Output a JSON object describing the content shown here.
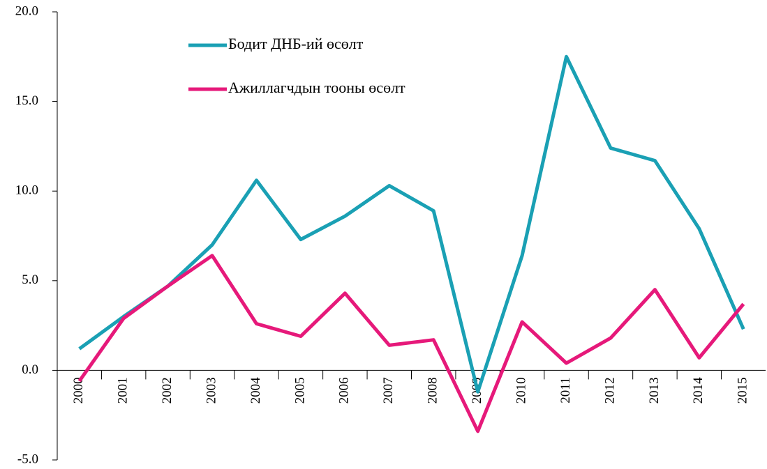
{
  "chart_data": {
    "type": "line",
    "categories": [
      "2000",
      "2001",
      "2002",
      "2003",
      "2004",
      "2005",
      "2006",
      "2007",
      "2008",
      "2009",
      "2010",
      "2011",
      "2012",
      "2013",
      "2014",
      "2015"
    ],
    "series": [
      {
        "name": "Бодит ДНБ-ий өсөлт",
        "color": "#1aa0b4",
        "values": [
          1.2,
          3.0,
          4.7,
          7.0,
          10.6,
          7.3,
          8.6,
          10.3,
          8.9,
          -1.2,
          6.4,
          17.5,
          12.4,
          11.7,
          7.9,
          2.3
        ]
      },
      {
        "name": "Ажиллагчдын тооны өсөлт",
        "color": "#e6197a",
        "values": [
          -0.6,
          2.9,
          4.7,
          6.4,
          2.6,
          1.9,
          4.3,
          1.4,
          1.7,
          -3.4,
          2.7,
          0.4,
          1.8,
          4.5,
          0.7,
          3.7
        ]
      }
    ],
    "ylim": [
      -5,
      20
    ],
    "yticks": [
      {
        "value": -5,
        "label": "-5.0"
      },
      {
        "value": 0,
        "label": "0.0"
      },
      {
        "value": 5,
        "label": "5.0"
      },
      {
        "value": 10,
        "label": "10.0"
      },
      {
        "value": 15,
        "label": "15.0"
      },
      {
        "value": 20,
        "label": "20.0"
      }
    ],
    "legend": "top-left"
  }
}
